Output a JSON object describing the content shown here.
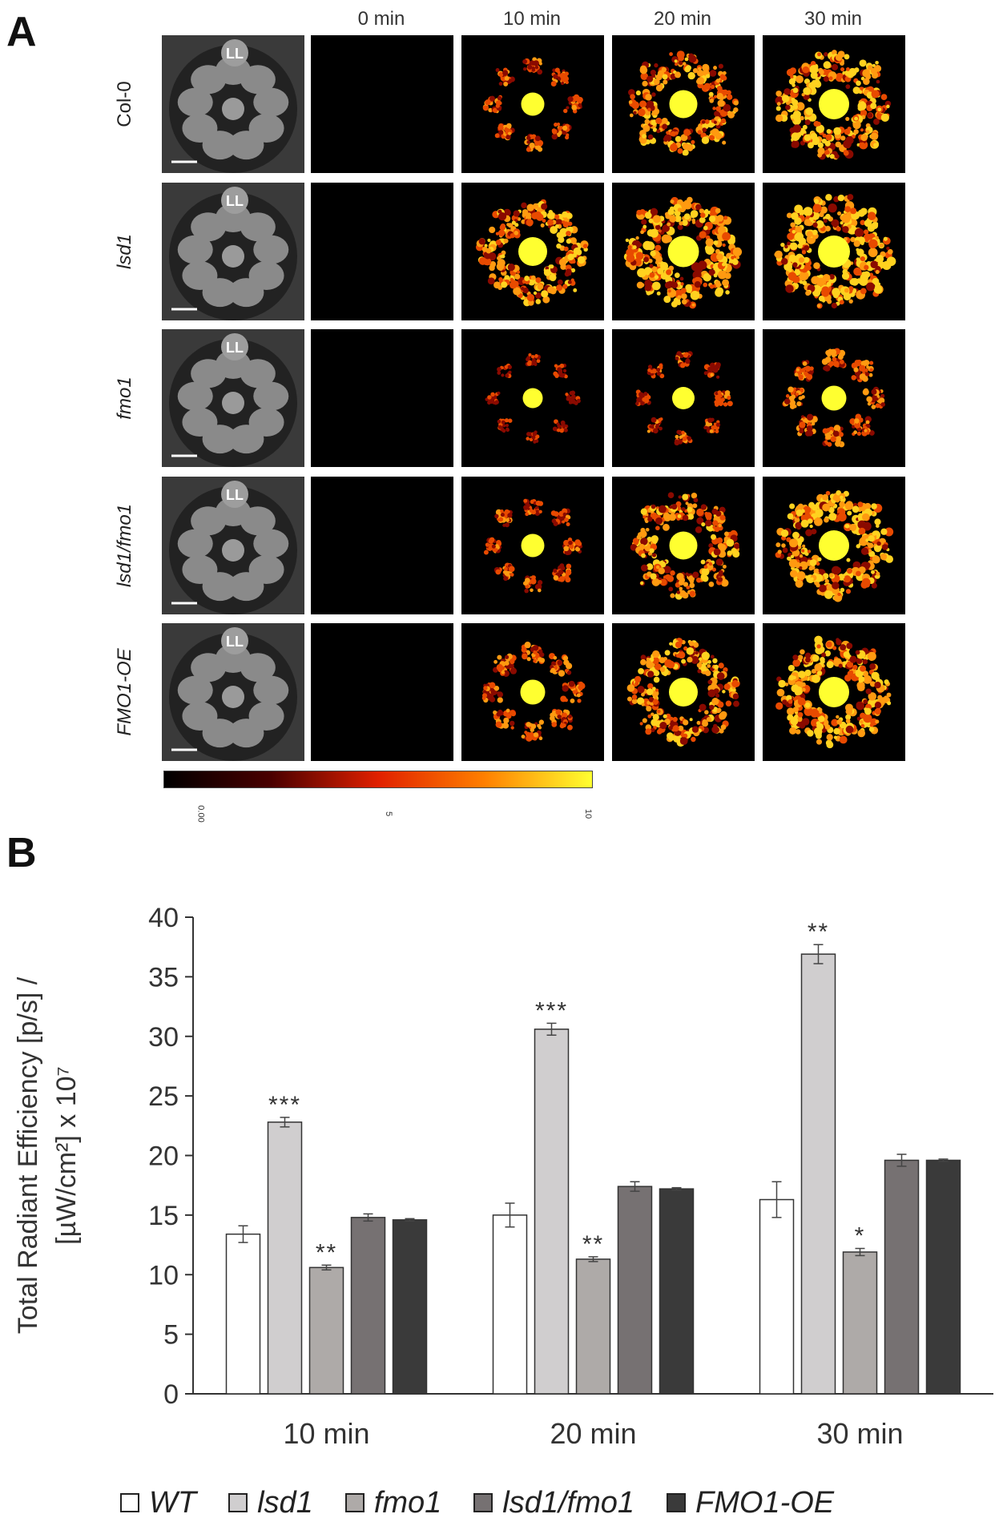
{
  "panelA": {
    "letter": "A",
    "columns": [
      "0 min",
      "10 min",
      "20 min",
      "30 min"
    ],
    "rows": [
      {
        "label": "Col-0",
        "italic": false,
        "marker": "LL",
        "intensity": [
          0,
          0.45,
          0.75,
          0.9
        ]
      },
      {
        "label": "lsd1",
        "italic": true,
        "marker": "LL",
        "intensity": [
          0,
          0.8,
          0.95,
          1.0
        ]
      },
      {
        "label": "fmo1",
        "italic": true,
        "marker": "LL",
        "intensity": [
          0,
          0.25,
          0.4,
          0.55
        ]
      },
      {
        "label": "lsd1/fmo1",
        "italic": true,
        "marker": "LL",
        "intensity": [
          0,
          0.45,
          0.75,
          0.9
        ]
      },
      {
        "label": "FMO1-OE",
        "italic": true,
        "marker": "LL",
        "intensity": [
          0,
          0.55,
          0.8,
          0.9
        ]
      }
    ],
    "colorbar": {
      "ticks": [
        "0.00",
        "5",
        "10"
      ],
      "colors": [
        "#000000",
        "#4a0000",
        "#e02000",
        "#ff8000",
        "#ffff30"
      ]
    }
  },
  "panelB": {
    "letter": "B"
  },
  "chart_data": {
    "type": "bar",
    "title": "",
    "xlabel": "",
    "ylabel_line1": "Total Radiant Efficiency [p/s] /",
    "ylabel_line2": "[µW/cm²] x 10⁷",
    "ylim": [
      0,
      40
    ],
    "yticks": [
      0,
      5,
      10,
      15,
      20,
      25,
      30,
      35,
      40
    ],
    "categories": [
      "10 min",
      "20 min",
      "30 min"
    ],
    "series": [
      {
        "name": "WT",
        "color": "#ffffff",
        "values": [
          13.4,
          15.0,
          16.3
        ],
        "errors": [
          0.7,
          1.0,
          1.5
        ],
        "sig": [
          "",
          "",
          ""
        ]
      },
      {
        "name": "lsd1",
        "color": "#d0cecf",
        "values": [
          22.8,
          30.6,
          36.9
        ],
        "errors": [
          0.4,
          0.5,
          0.8
        ],
        "sig": [
          "***",
          "***",
          "**"
        ]
      },
      {
        "name": "fmo1",
        "color": "#aeaaa8",
        "values": [
          10.6,
          11.3,
          11.9
        ],
        "errors": [
          0.2,
          0.2,
          0.3
        ],
        "sig": [
          "**",
          "**",
          "*"
        ]
      },
      {
        "name": "lsd1/fmo1",
        "color": "#767172",
        "values": [
          14.8,
          17.4,
          19.6
        ],
        "errors": [
          0.3,
          0.4,
          0.5
        ],
        "sig": [
          "",
          "",
          ""
        ]
      },
      {
        "name": "FMO1-OE",
        "color": "#3a3a3a",
        "values": [
          14.6,
          17.2,
          19.6
        ],
        "errors": [
          0.1,
          0.1,
          0.1
        ],
        "sig": [
          "",
          "",
          ""
        ]
      }
    ],
    "legend": "bottom",
    "grid": false
  }
}
